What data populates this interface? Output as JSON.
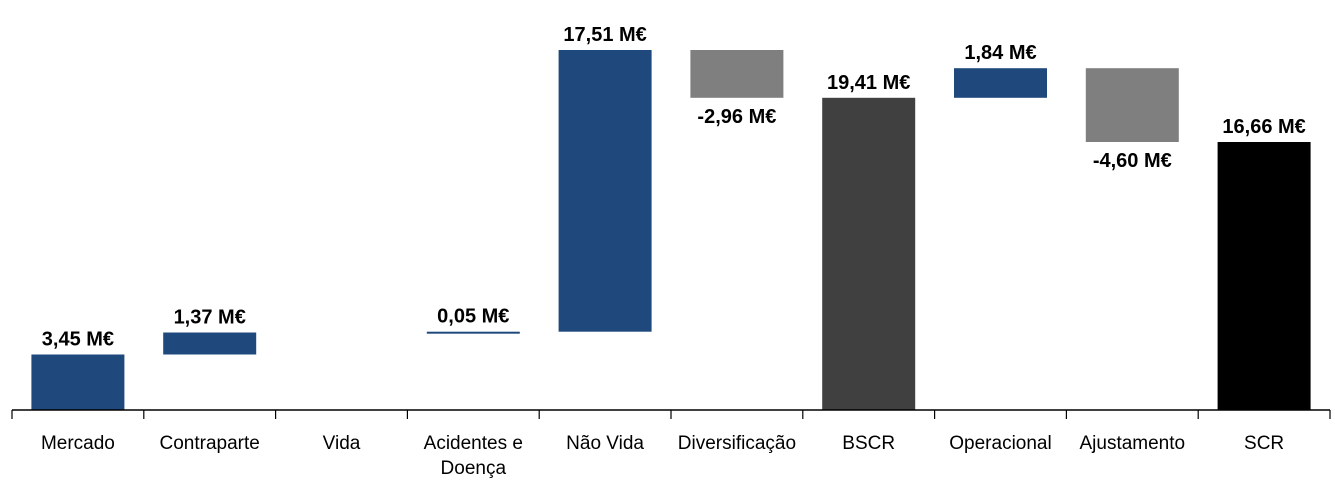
{
  "chart_data": {
    "type": "waterfall",
    "title": "",
    "xlabel": "",
    "ylabel": "",
    "ylim": [
      0,
      22.5
    ],
    "grid": false,
    "legend": "none",
    "colors": {
      "increase": "#1f497d",
      "decrease": "#7f7f7f",
      "subtotal": "#404040",
      "total": "#000000"
    },
    "bars": [
      {
        "category": [
          "Mercado"
        ],
        "value": 3.45,
        "start": 0,
        "end": 3.45,
        "kind": "increase",
        "label": "3,45 M€"
      },
      {
        "category": [
          "Contraparte"
        ],
        "value": 1.37,
        "start": 3.45,
        "end": 4.82,
        "kind": "increase",
        "label": "1,37 M€"
      },
      {
        "category": [
          "Vida"
        ],
        "value": 0,
        "start": 4.82,
        "end": 4.82,
        "kind": "none",
        "label": ""
      },
      {
        "category": [
          "Acidentes e",
          "Doença"
        ],
        "value": 0.05,
        "start": 4.82,
        "end": 4.87,
        "kind": "increase",
        "label": "0,05 M€"
      },
      {
        "category": [
          "Não Vida"
        ],
        "value": 17.51,
        "start": 4.87,
        "end": 22.38,
        "kind": "increase",
        "label": "17,51 M€"
      },
      {
        "category": [
          "Diversificação"
        ],
        "value": -2.96,
        "start": 22.38,
        "end": 19.41,
        "kind": "decrease",
        "label": "-2,96 M€"
      },
      {
        "category": [
          "BSCR"
        ],
        "value": 19.41,
        "start": 0,
        "end": 19.41,
        "kind": "subtotal",
        "label": "19,41 M€"
      },
      {
        "category": [
          "Operacional"
        ],
        "value": 1.84,
        "start": 19.41,
        "end": 21.25,
        "kind": "increase",
        "label": "1,84 M€"
      },
      {
        "category": [
          "Ajustamento"
        ],
        "value": -4.6,
        "start": 21.25,
        "end": 16.66,
        "kind": "decrease",
        "label": "-4,60 M€"
      },
      {
        "category": [
          "SCR"
        ],
        "value": 16.66,
        "start": 0,
        "end": 16.66,
        "kind": "total",
        "label": "16,66 M€"
      }
    ]
  }
}
